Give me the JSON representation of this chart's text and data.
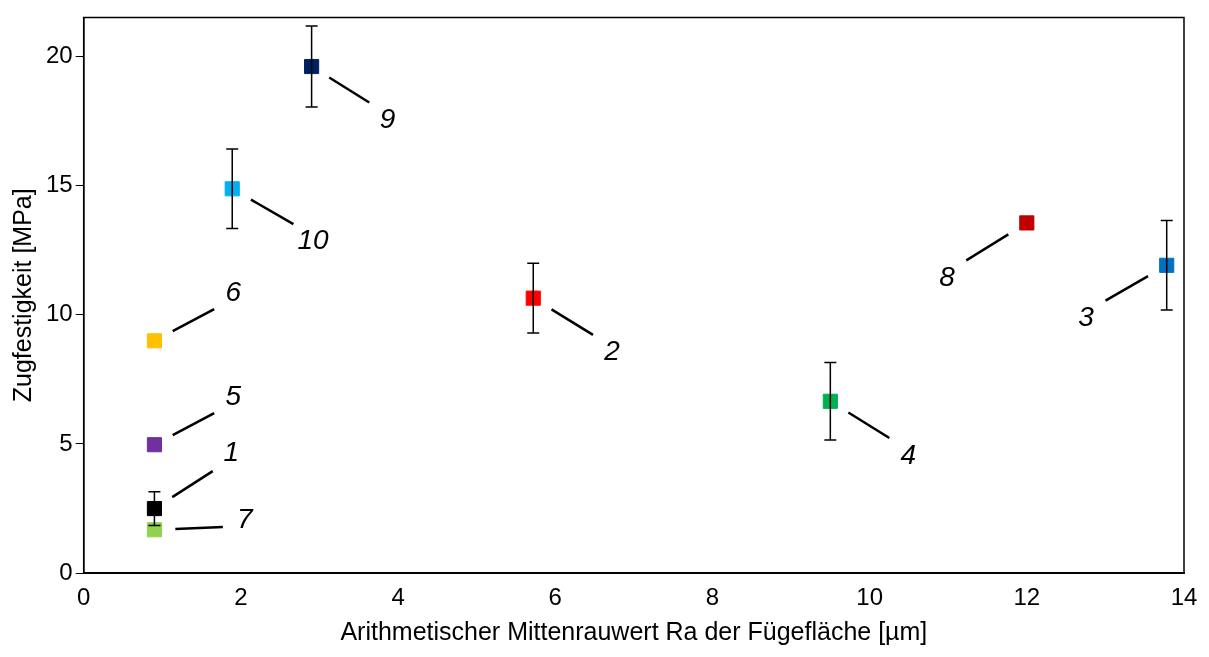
{
  "chart_data": {
    "type": "scatter",
    "xlabel": "Arithmetischer Mittenrauwert Ra der Fügefläche [µm]",
    "ylabel": "Zugfestigkeit [MPa]",
    "x": [
      0.9,
      5.72,
      13.78,
      9.5,
      0.9,
      0.9,
      0.9,
      12.0,
      2.9,
      1.89
    ],
    "values": [
      2.5,
      10.64,
      11.91,
      6.65,
      4.97,
      8.99,
      1.68,
      13.55,
      19.6,
      14.87
    ],
    "errors": [
      0.65,
      1.35,
      1.73,
      1.5,
      null,
      null,
      null,
      null,
      1.57,
      1.54
    ],
    "colors": [
      "#000000",
      "#ff0000",
      "#0070c0",
      "#00b050",
      "#7030a0",
      "#ffc000",
      "#92d050",
      "#c00000",
      "#002060",
      "#00b0f0"
    ],
    "annotations": [
      {
        "text": "1",
        "x": 0.9,
        "y": 2.5
      },
      {
        "text": "2",
        "x": 5.72,
        "y": 10.64
      },
      {
        "text": "3",
        "x": 13.78,
        "y": 11.91
      },
      {
        "text": "4",
        "x": 9.5,
        "y": 6.65
      },
      {
        "text": "5",
        "x": 0.9,
        "y": 4.97
      },
      {
        "text": "6",
        "x": 0.9,
        "y": 8.99
      },
      {
        "text": "7",
        "x": 0.9,
        "y": 1.68
      },
      {
        "text": "8",
        "x": 12.0,
        "y": 13.55
      },
      {
        "text": "9",
        "x": 2.9,
        "y": 19.6
      },
      {
        "text": "10",
        "x": 1.89,
        "y": 14.87
      }
    ],
    "xlim": [
      0,
      14
    ],
    "xticks": [
      0,
      2,
      4,
      6,
      8,
      10,
      12,
      14
    ],
    "ylim": [
      0,
      21.5
    ],
    "yticks": [
      0,
      5,
      10,
      15,
      20
    ],
    "grid": false,
    "legend": false,
    "marker": "square"
  }
}
